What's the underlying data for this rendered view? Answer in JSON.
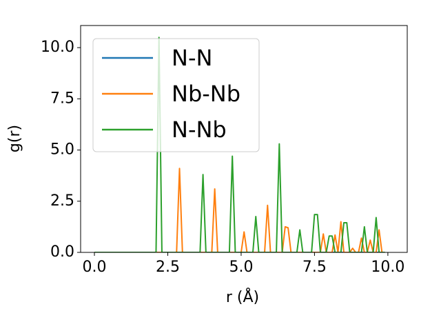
{
  "chart_data": {
    "type": "line",
    "xlabel": "r (Å)",
    "ylabel": "g(r)",
    "xlim": [
      -0.47,
      10.66
    ],
    "ylim": [
      0,
      11.08
    ],
    "xticks": [
      {
        "value": 0,
        "label": "0.0"
      },
      {
        "value": 2.5,
        "label": "2.5"
      },
      {
        "value": 5,
        "label": "5.0"
      },
      {
        "value": 7.5,
        "label": "7.5"
      },
      {
        "value": 10,
        "label": "10.0"
      }
    ],
    "yticks": [
      {
        "value": 0,
        "label": "0.0"
      },
      {
        "value": 2.5,
        "label": "2.5"
      },
      {
        "value": 5,
        "label": "5.0"
      },
      {
        "value": 7.5,
        "label": "7.5"
      },
      {
        "value": 10,
        "label": "10.0"
      }
    ],
    "grid": false,
    "legend": "upper left",
    "x": [
      0,
      0.1,
      0.2,
      0.3,
      0.4,
      0.5,
      0.6,
      0.7,
      0.8,
      0.9,
      1,
      1.1,
      1.2,
      1.3,
      1.4,
      1.5,
      1.6,
      1.7,
      1.8,
      1.9,
      2,
      2.1,
      2.2,
      2.3,
      2.4,
      2.5,
      2.6,
      2.7,
      2.8,
      2.9,
      3,
      3.1,
      3.2,
      3.3,
      3.4,
      3.5,
      3.6,
      3.7,
      3.8,
      3.9,
      4,
      4.1,
      4.2,
      4.3,
      4.4,
      4.5,
      4.6,
      4.7,
      4.8,
      4.9,
      5,
      5.1,
      5.2,
      5.3,
      5.4,
      5.5,
      5.6,
      5.7,
      5.8,
      5.9,
      6,
      6.1,
      6.2,
      6.3,
      6.4,
      6.5,
      6.6,
      6.7,
      6.8,
      6.9,
      7,
      7.1,
      7.2,
      7.3,
      7.4,
      7.5,
      7.6,
      7.7,
      7.8,
      7.9,
      8,
      8.1,
      8.2,
      8.3,
      8.4,
      8.5,
      8.6,
      8.7,
      8.8,
      8.9,
      9,
      9.1,
      9.2,
      9.3,
      9.4,
      9.5,
      9.6,
      9.7,
      9.8,
      9.9
    ],
    "series": [
      {
        "name": "N-N",
        "color": "#1f77b4",
        "values": [
          0,
          0,
          0,
          0,
          0,
          0,
          0,
          0,
          0,
          0,
          0,
          0,
          0,
          0,
          0,
          0,
          0,
          0,
          0,
          0,
          0,
          0,
          0,
          0,
          0,
          0,
          0,
          0,
          0,
          0,
          0,
          0,
          0,
          0,
          0,
          0,
          0,
          0,
          0,
          0,
          0,
          0,
          0,
          0,
          0,
          0,
          0,
          0,
          0,
          0,
          0,
          0,
          0,
          0,
          0,
          0,
          0,
          0,
          0,
          0,
          0,
          0,
          0,
          0,
          0,
          0,
          0,
          0,
          0,
          0,
          0,
          0,
          0,
          0,
          0,
          0,
          0,
          0,
          0,
          0,
          0,
          0,
          0,
          0,
          0,
          0,
          0,
          0,
          0,
          0,
          0,
          0,
          0,
          0,
          0,
          0,
          0,
          0,
          0,
          0
        ]
      },
      {
        "name": "Nb-Nb",
        "color": "#ff7f0e",
        "values": [
          0,
          0,
          0,
          0,
          0,
          0,
          0,
          0,
          0,
          0,
          0,
          0,
          0,
          0,
          0,
          0,
          0,
          0,
          0,
          0,
          0,
          0,
          0,
          0,
          0,
          0,
          0,
          0,
          0,
          4.1,
          0,
          0,
          0,
          0,
          0,
          0,
          0,
          0,
          0,
          0,
          0,
          3.1,
          0,
          0,
          0,
          0,
          0,
          0,
          0,
          0,
          0,
          1.0,
          0,
          0,
          0,
          0,
          0,
          0,
          0,
          2.3,
          0,
          0,
          0,
          0,
          0,
          1.25,
          1.2,
          0,
          0,
          0,
          0,
          0,
          0,
          0,
          0,
          0,
          0,
          0,
          0.9,
          0,
          0,
          0,
          0.85,
          0,
          1.5,
          0,
          0,
          0,
          0.2,
          0,
          0,
          0.7,
          0,
          0,
          0.6,
          0,
          0,
          1.1,
          0,
          0
        ]
      },
      {
        "name": "N-Nb",
        "color": "#2ca02c",
        "values": [
          0,
          0,
          0,
          0,
          0,
          0,
          0,
          0,
          0,
          0,
          0,
          0,
          0,
          0,
          0,
          0,
          0,
          0,
          0,
          0,
          0,
          0,
          10.5,
          0,
          0,
          0,
          0,
          0,
          0,
          0,
          0,
          0,
          0,
          0,
          0,
          0,
          0,
          3.8,
          0,
          0,
          0,
          0,
          0,
          0,
          0,
          0,
          0,
          4.7,
          0,
          0,
          0,
          0,
          0,
          0,
          0,
          1.75,
          0,
          0,
          0,
          0,
          0,
          0,
          0,
          5.3,
          0,
          0,
          0,
          0,
          0,
          0,
          1.1,
          0,
          0,
          0,
          0,
          1.85,
          1.85,
          0,
          0,
          0,
          0.8,
          0.8,
          0,
          0,
          0,
          1.45,
          1.45,
          0,
          0,
          0,
          0,
          0,
          1.25,
          0,
          0,
          0,
          1.7,
          0,
          0,
          0
        ]
      }
    ]
  }
}
